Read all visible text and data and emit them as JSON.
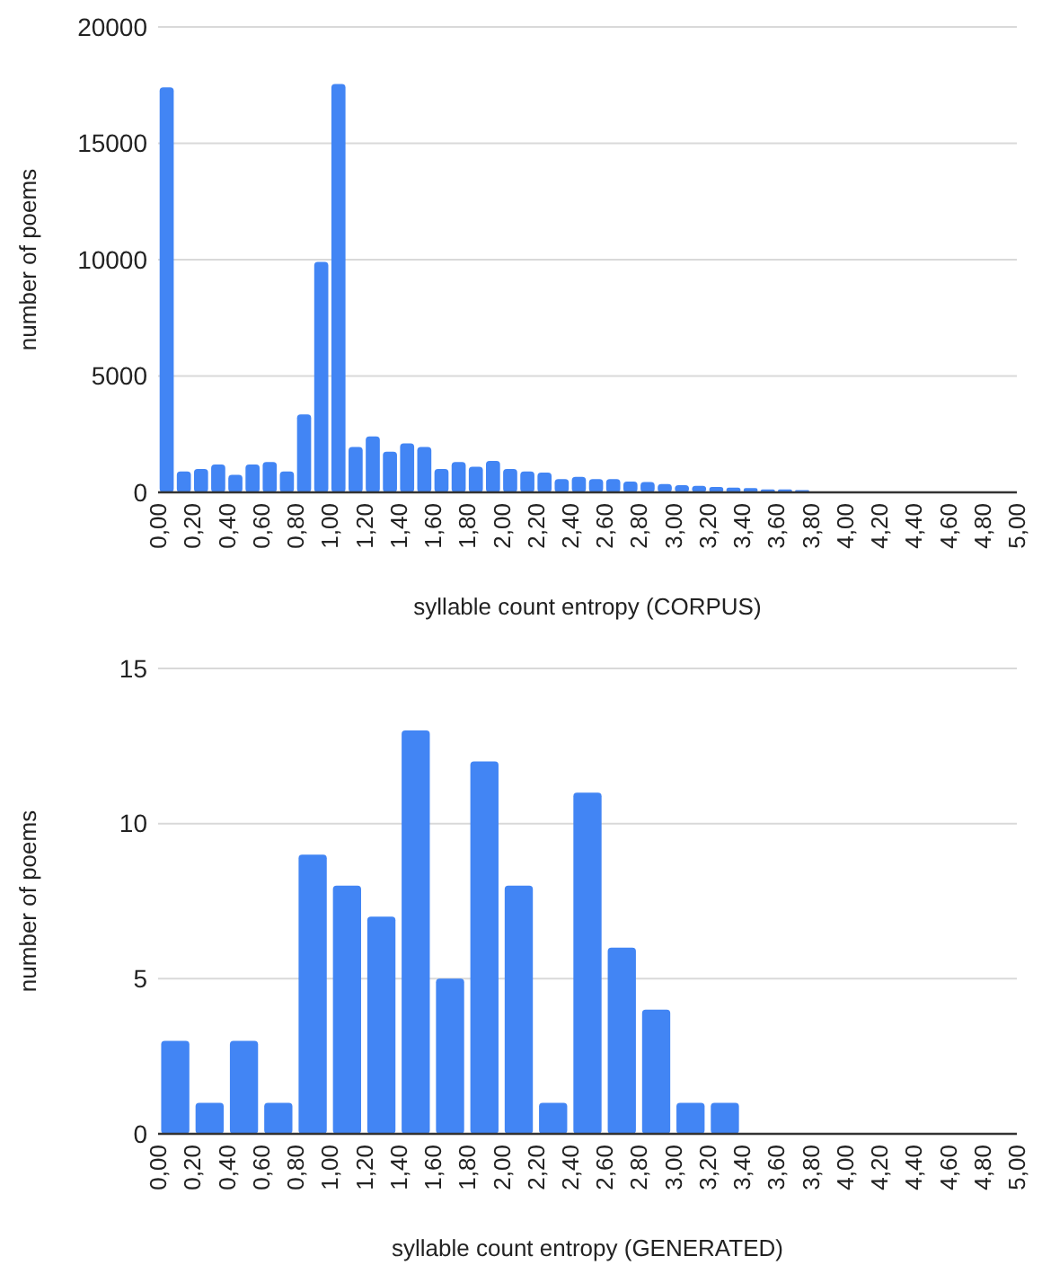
{
  "chart_data": [
    {
      "type": "histogram",
      "xlabel": "syllable count entropy (CORPUS)",
      "ylabel": "number of poems",
      "color": "#4285f4",
      "grid": "y",
      "bins": [
        0,
        0.1,
        0.2,
        0.3,
        0.4,
        0.5,
        0.6,
        0.7,
        0.8,
        0.9,
        1.0,
        1.1,
        1.2,
        1.3,
        1.4,
        1.5,
        1.6,
        1.7,
        1.8,
        1.9,
        2.0,
        2.1,
        2.2,
        2.3,
        2.4,
        2.5,
        2.6,
        2.7,
        2.8,
        2.9,
        3.0,
        3.1,
        3.2,
        3.3,
        3.4,
        3.5,
        3.6,
        3.7,
        3.8,
        3.9,
        4.0,
        4.1,
        4.2,
        4.3,
        4.4,
        4.5,
        4.6,
        4.7,
        4.8,
        4.9,
        5.0
      ],
      "values": [
        17400,
        900,
        1000,
        1200,
        750,
        1200,
        1300,
        900,
        3350,
        9900,
        17550,
        1950,
        2400,
        1750,
        2100,
        1950,
        1000,
        1300,
        1100,
        1350,
        1000,
        900,
        850,
        570,
        670,
        570,
        570,
        460,
        440,
        360,
        310,
        280,
        230,
        200,
        180,
        130,
        130,
        100,
        0,
        0,
        0,
        0,
        0,
        0,
        0,
        0,
        0,
        0,
        0,
        0
      ],
      "xlim": [
        0,
        5
      ],
      "xticks": [
        {
          "value": 0,
          "label": "0,00"
        },
        {
          "value": 0.2,
          "label": "0,20"
        },
        {
          "value": 0.4,
          "label": "0,40"
        },
        {
          "value": 0.6,
          "label": "0,60"
        },
        {
          "value": 0.8,
          "label": "0,80"
        },
        {
          "value": 1.0,
          "label": "1,00"
        },
        {
          "value": 1.2,
          "label": "1,20"
        },
        {
          "value": 1.4,
          "label": "1,40"
        },
        {
          "value": 1.6,
          "label": "1,60"
        },
        {
          "value": 1.8,
          "label": "1,80"
        },
        {
          "value": 2.0,
          "label": "2,00"
        },
        {
          "value": 2.2,
          "label": "2,20"
        },
        {
          "value": 2.4,
          "label": "2,40"
        },
        {
          "value": 2.6,
          "label": "2,60"
        },
        {
          "value": 2.8,
          "label": "2,80"
        },
        {
          "value": 3.0,
          "label": "3,00"
        },
        {
          "value": 3.2,
          "label": "3,20"
        },
        {
          "value": 3.4,
          "label": "3,40"
        },
        {
          "value": 3.6,
          "label": "3,60"
        },
        {
          "value": 3.8,
          "label": "3,80"
        },
        {
          "value": 4.0,
          "label": "4,00"
        },
        {
          "value": 4.2,
          "label": "4,20"
        },
        {
          "value": 4.4,
          "label": "4,40"
        },
        {
          "value": 4.6,
          "label": "4,60"
        },
        {
          "value": 4.8,
          "label": "4,80"
        },
        {
          "value": 5.0,
          "label": "5,00"
        }
      ],
      "ylim": [
        0,
        20000
      ],
      "yticks": [
        0,
        5000,
        10000,
        15000,
        20000
      ]
    },
    {
      "type": "histogram",
      "xlabel": "syllable count entropy (GENERATED)",
      "ylabel": "number of poems",
      "color": "#4285f4",
      "grid": "y",
      "bins": [
        0,
        0.2,
        0.4,
        0.6,
        0.8,
        1.0,
        1.2,
        1.4,
        1.6,
        1.8,
        2.0,
        2.2,
        2.4,
        2.6,
        2.8,
        3.0,
        3.2,
        3.4,
        3.6,
        3.8,
        4.0,
        4.2,
        4.4,
        4.6,
        4.8,
        5.0
      ],
      "values": [
        3,
        1,
        3,
        1,
        9,
        8,
        7,
        13,
        5,
        12,
        8,
        1,
        11,
        6,
        4,
        1,
        1,
        0,
        0,
        0,
        0,
        0,
        0,
        0,
        0
      ],
      "xlim": [
        0,
        5
      ],
      "xticks": [
        {
          "value": 0,
          "label": "0,00"
        },
        {
          "value": 0.2,
          "label": "0,20"
        },
        {
          "value": 0.4,
          "label": "0,40"
        },
        {
          "value": 0.6,
          "label": "0,60"
        },
        {
          "value": 0.8,
          "label": "0,80"
        },
        {
          "value": 1.0,
          "label": "1,00"
        },
        {
          "value": 1.2,
          "label": "1,20"
        },
        {
          "value": 1.4,
          "label": "1,40"
        },
        {
          "value": 1.6,
          "label": "1,60"
        },
        {
          "value": 1.8,
          "label": "1,80"
        },
        {
          "value": 2.0,
          "label": "2,00"
        },
        {
          "value": 2.2,
          "label": "2,20"
        },
        {
          "value": 2.4,
          "label": "2,40"
        },
        {
          "value": 2.6,
          "label": "2,60"
        },
        {
          "value": 2.8,
          "label": "2,80"
        },
        {
          "value": 3.0,
          "label": "3,00"
        },
        {
          "value": 3.2,
          "label": "3,20"
        },
        {
          "value": 3.4,
          "label": "3,40"
        },
        {
          "value": 3.6,
          "label": "3,60"
        },
        {
          "value": 3.8,
          "label": "3,80"
        },
        {
          "value": 4.0,
          "label": "4,00"
        },
        {
          "value": 4.2,
          "label": "4,20"
        },
        {
          "value": 4.4,
          "label": "4,40"
        },
        {
          "value": 4.6,
          "label": "4,60"
        },
        {
          "value": 4.8,
          "label": "4,80"
        },
        {
          "value": 5.0,
          "label": "5,00"
        }
      ],
      "ylim": [
        0,
        15
      ],
      "yticks": [
        0,
        5,
        10,
        15
      ]
    }
  ]
}
